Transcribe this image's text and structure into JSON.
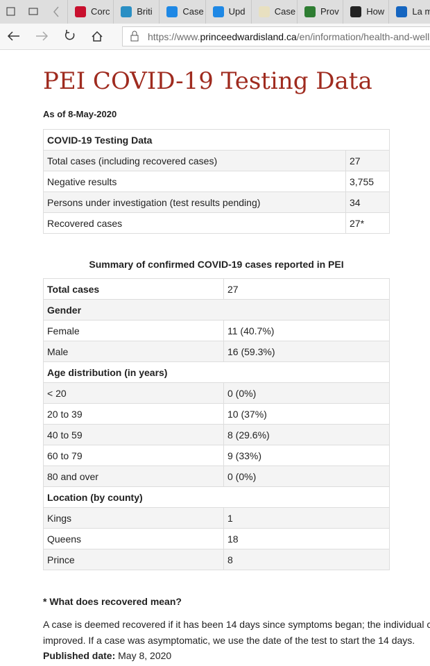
{
  "browser": {
    "tabs": [
      "Corc",
      "Briti",
      "Case",
      "Upd",
      "Case",
      "Prov",
      "How",
      "La m"
    ],
    "url_scheme": "https://www.",
    "url_domain": "princeedwardisland.ca",
    "url_path": "/en/information/health-and-wellnes"
  },
  "page": {
    "title": "PEI COVID-19 Testing Data",
    "as_of": "As of 8-May-2020",
    "testing_table": {
      "header": "COVID-19 Testing Data",
      "rows": [
        [
          "Total cases (including recovered cases)",
          "27"
        ],
        [
          "Negative results",
          "3,755"
        ],
        [
          "Persons under investigation (test results pending)",
          "34"
        ],
        [
          "Recovered cases",
          "27*"
        ]
      ]
    },
    "summary_table": {
      "caption": "Summary of confirmed COVID-19 cases reported in PEI",
      "rows": [
        [
          "Total cases",
          "27"
        ],
        [
          "Gender"
        ],
        [
          "Female",
          "11 (40.7%)"
        ],
        [
          "Male",
          "16 (59.3%)"
        ],
        [
          "Age distribution (in years)"
        ],
        [
          "< 20",
          "0 (0%)"
        ],
        [
          "20 to 39",
          "10 (37%)"
        ],
        [
          "40 to 59",
          "8 (29.6%)"
        ],
        [
          "60 to 79",
          "9 (33%)"
        ],
        [
          "80 and over",
          "0 (0%)"
        ],
        [
          "Location (by county)"
        ],
        [
          "Kings",
          "1"
        ],
        [
          "Queens",
          "18"
        ],
        [
          "Prince",
          "8"
        ]
      ]
    },
    "footnote": {
      "heading": "* What does recovered mean?",
      "lines": [
        "A case is deemed recovered if it has been 14 days since symptoms began; the individual c",
        "improved. If a case was asymptomatic, we use the date of the test to start the 14 days."
      ],
      "published_label": "Published date:",
      "published_value": "May 8, 2020"
    }
  }
}
